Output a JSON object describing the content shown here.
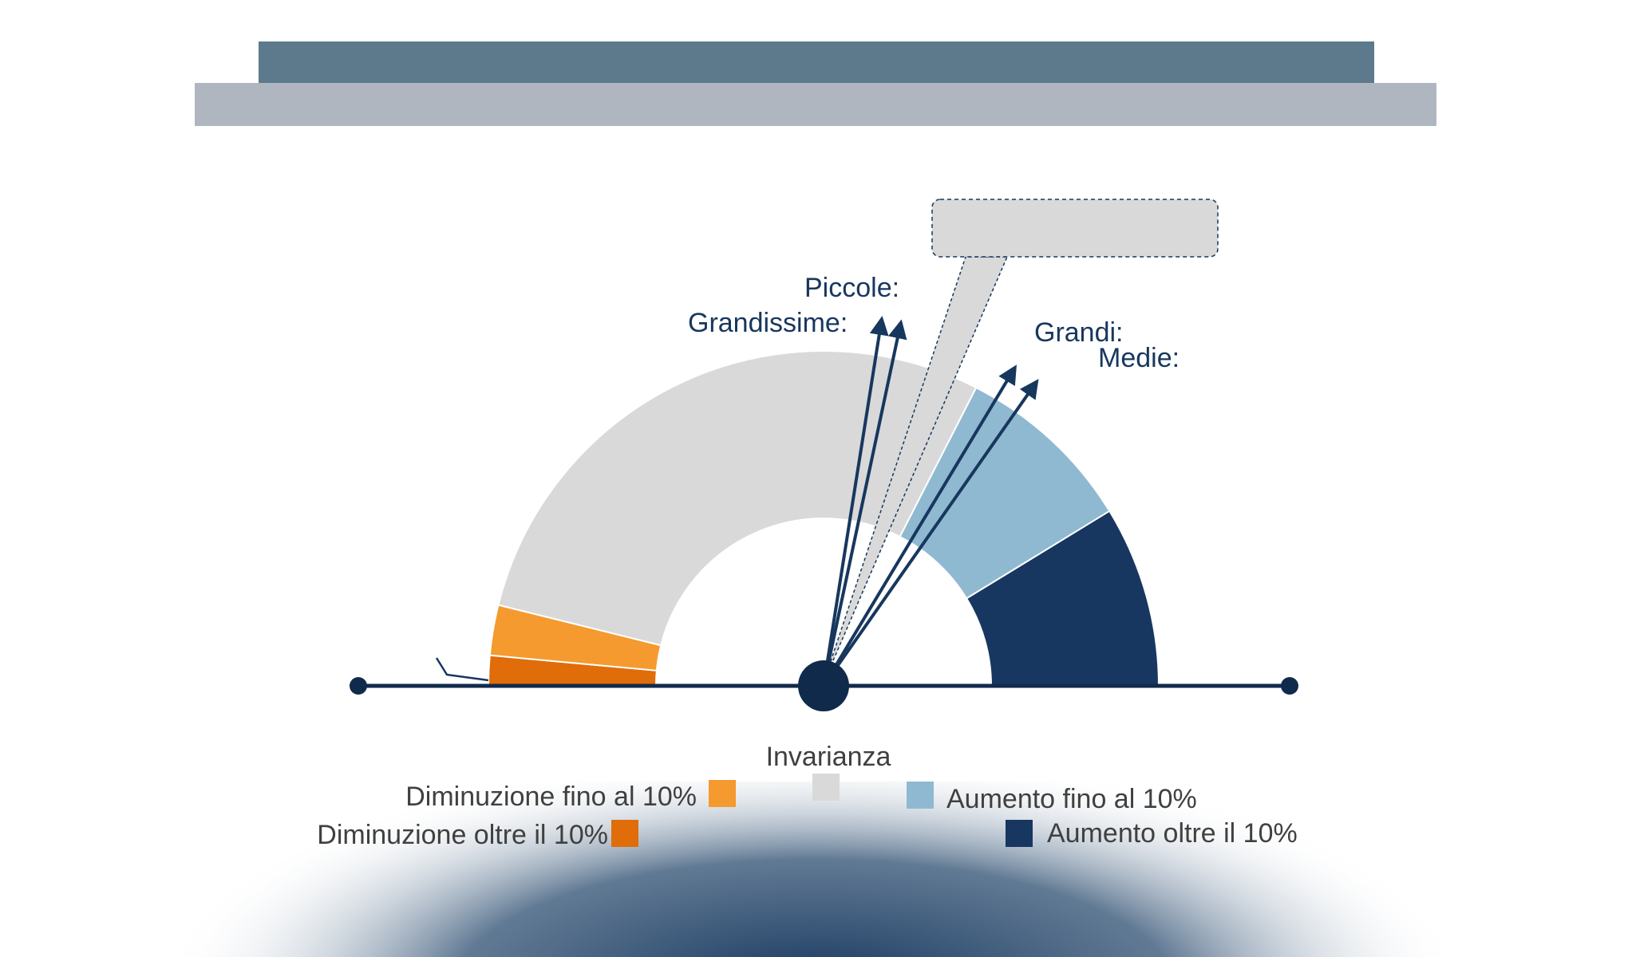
{
  "colors": {
    "header_dark": "#5c7a8c",
    "header_light": "#afb6bf",
    "callout_fill": "#d9d9d9",
    "axis": "#102a4c",
    "gradient": "#17375e"
  },
  "chart_data": {
    "type": "gauge",
    "title": "",
    "segments": [
      {
        "name": "Diminuzione oltre il 10%",
        "value": 3,
        "color": "#e06c0a"
      },
      {
        "name": "Diminuzione fino al 10%",
        "value": 5,
        "color": "#f59a2e"
      },
      {
        "name": "Invarianza",
        "value": 59,
        "color": "#d9d9d9"
      },
      {
        "name": "Aumento fino al 10%",
        "value": 18,
        "color": "#8fb9d1"
      },
      {
        "name": "Aumento oltre il 10%",
        "value": 18,
        "color": "#173761"
      }
    ],
    "scale_max": 103,
    "arrows": [
      {
        "name": "Piccole:",
        "angle_deg": 81
      },
      {
        "name": "Grandissime:",
        "angle_deg": 78
      },
      {
        "name": "Grandi:",
        "angle_deg": 59
      },
      {
        "name": "Medie:",
        "angle_deg": 55
      }
    ],
    "callout_pointer_angle_deg": 72,
    "legend": [
      {
        "label": "Diminuzione fino al 10%",
        "color": "#f59a2e"
      },
      {
        "label": "Diminuzione oltre il 10%",
        "color": "#e06c0a"
      },
      {
        "label": "Invarianza",
        "color": "#d9d9d9"
      },
      {
        "label": "Aumento fino al 10%",
        "color": "#8fb9d1"
      },
      {
        "label": "Aumento oltre il 10%",
        "color": "#173761"
      }
    ]
  }
}
